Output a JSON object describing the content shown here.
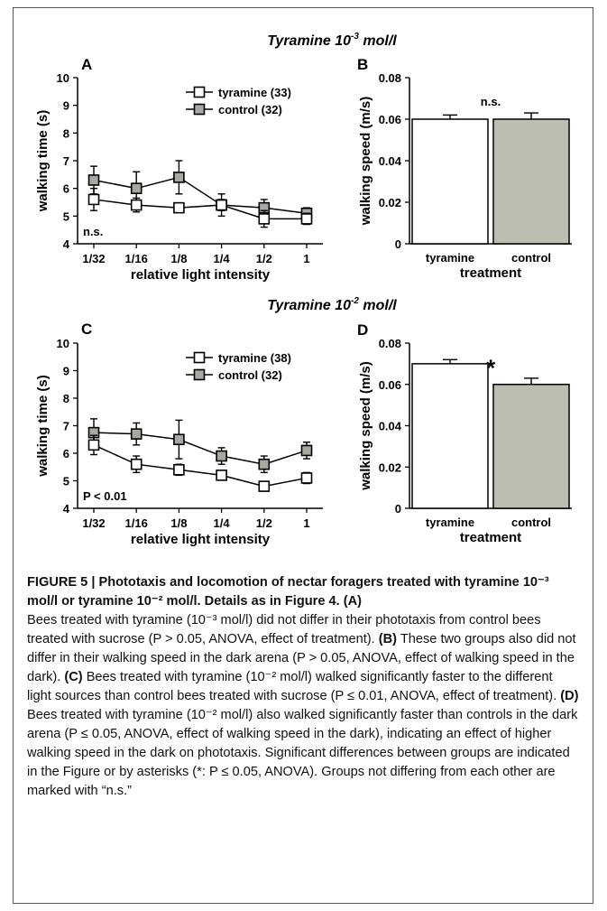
{
  "sections": [
    {
      "title_prefix": "Tyramine 10",
      "title_exp": "-3",
      "title_unit": " mol/l"
    },
    {
      "title_prefix": "Tyramine 10",
      "title_exp": "-2",
      "title_unit": " mol/l"
    }
  ],
  "chart_data": [
    {
      "panel": "A",
      "type": "line",
      "xlabel": "relative light intensity",
      "ylabel": "walking time (s)",
      "categories": [
        "1/32",
        "1/16",
        "1/8",
        "1/4",
        "1/2",
        "1"
      ],
      "ylim": [
        4,
        10
      ],
      "yticks": [
        "4",
        "5",
        "6",
        "7",
        "8",
        "9",
        "10"
      ],
      "series": [
        {
          "name": "tyramine (33)",
          "values": [
            5.6,
            5.4,
            5.3,
            5.4,
            4.9,
            4.9
          ],
          "err": [
            0.4,
            0.25,
            0.15,
            0.2,
            0.3,
            0.2
          ],
          "fill": "#ffffff"
        },
        {
          "name": "control (32)",
          "values": [
            6.3,
            6.0,
            6.4,
            5.4,
            5.3,
            5.1
          ],
          "err": [
            0.5,
            0.6,
            0.6,
            0.4,
            0.3,
            0.2
          ],
          "fill": "#a8a8a0"
        }
      ],
      "annotation": "n.s.",
      "legend": "top-right"
    },
    {
      "panel": "B",
      "type": "bar",
      "xlabel": "treatment",
      "ylabel": "walking speed (m/s)",
      "categories": [
        "tyramine",
        "control"
      ],
      "values": [
        0.06,
        0.06
      ],
      "err": [
        0.002,
        0.003
      ],
      "ylim": [
        0,
        0.08
      ],
      "yticks": [
        "0",
        "0.02",
        "0.04",
        "0.06",
        "0.08"
      ],
      "colors": [
        "#ffffff",
        "#bdbdb2"
      ],
      "annotation": "n.s."
    },
    {
      "panel": "C",
      "type": "line",
      "xlabel": "relative light intensity",
      "ylabel": "walking time (s)",
      "categories": [
        "1/32",
        "1/16",
        "1/8",
        "1/4",
        "1/2",
        "1"
      ],
      "ylim": [
        4,
        10
      ],
      "yticks": [
        "4",
        "5",
        "6",
        "7",
        "8",
        "9",
        "10"
      ],
      "series": [
        {
          "name": "tyramine (38)",
          "values": [
            6.3,
            5.6,
            5.4,
            5.2,
            4.8,
            5.1
          ],
          "err": [
            0.35,
            0.3,
            0.2,
            0.15,
            0.15,
            0.2
          ],
          "fill": "#ffffff"
        },
        {
          "name": "control (32)",
          "values": [
            6.75,
            6.7,
            6.5,
            5.9,
            5.6,
            6.1
          ],
          "err": [
            0.5,
            0.4,
            0.7,
            0.3,
            0.3,
            0.3
          ],
          "fill": "#a8a8a0"
        }
      ],
      "annotation": "P < 0.01",
      "legend": "top-right"
    },
    {
      "panel": "D",
      "type": "bar",
      "xlabel": "treatment",
      "ylabel": "walking speed (m/s)",
      "categories": [
        "tyramine",
        "control"
      ],
      "values": [
        0.07,
        0.06
      ],
      "err": [
        0.002,
        0.003
      ],
      "ylim": [
        0,
        0.08
      ],
      "yticks": [
        "0",
        "0.02",
        "0.04",
        "0.06",
        "0.08"
      ],
      "colors": [
        "#ffffff",
        "#bdbdb2"
      ],
      "annotation": "*"
    }
  ],
  "caption": {
    "heading": "FIGURE 5 | Phototaxis and locomotion of nectar foragers treated with tyramine 10⁻³ mol/l or tyramine 10⁻² mol/l. Details as in Figure 4. (A)",
    "a": "Bees treated with tyramine (10⁻³ mol/l) did not differ in their phototaxis from control bees treated with sucrose (P > 0.05, ANOVA, effect of treatment).",
    "b_label": "(B)",
    "b": "These two groups also did not differ in their walking speed in the dark arena (P > 0.05, ANOVA, effect of walking speed in the dark).",
    "c_label": "(C)",
    "c": "Bees treated with tyramine (10⁻² mol/l) walked significantly faster to the different light sources than control bees treated with sucrose (P ≤ 0.01, ANOVA, effect of treatment).",
    "d_label": "(D)",
    "d": "Bees treated with tyramine (10⁻² mol/l) also walked significantly faster than controls in the dark arena (P ≤ 0.05, ANOVA, effect of walking speed in the dark), indicating an effect of higher walking speed in the dark on phototaxis. Significant differences between groups are indicated in the Figure or by asterisks (*: P ≤ 0.05, ANOVA). Groups not differing from each other are marked with “n.s.”"
  }
}
